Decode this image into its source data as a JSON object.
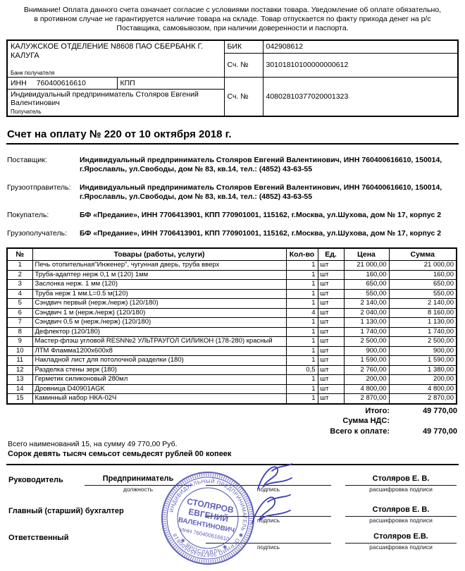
{
  "attention": "Внимание! Оплата данного счета означает согласие с условиями поставки товара. Уведомление об оплате обязательно, в противном случае не гарантируется наличие товара на складе. Товар отпускается по факту прихода денег на р/с Поставщика, самовывозом, при наличии доверенности и паспорта.",
  "bank": {
    "bank_name": "КАЛУЖСКОЕ ОТДЕЛЕНИЕ N8608 ПАО СБЕРБАНК Г. КАЛУГА",
    "bank_caption": "Банк получателя",
    "bik_label": "БИК",
    "bik": "042908612",
    "corr_account_label": "Сч. №",
    "corr_account": "30101810100000000612",
    "inn_label": "ИНН",
    "inn": "760400616610",
    "kpp_label": "КПП",
    "account_label": "Сч. №",
    "account": "40802810377020001323",
    "receiver": "Индивидуальный предприниматель Столяров Евгений Валентинович",
    "receiver_caption": "Получатель"
  },
  "title": "Счет на оплату № 220 от 10 октября 2018 г.",
  "parties": [
    {
      "label": "Поставщик:",
      "value": "Индивидуальный предприниматель Столяров Евгений Валентинович, ИНН 760400616610, 150014, г.Ярославль, ул.Свободы, дом № 83, кв.14, тел.: (4852) 43-63-55"
    },
    {
      "label": "Грузоотправитель:",
      "value": "Индивидуальный предприниматель Столяров Евгений Валентинович, ИНН 760400616610, 150014, г.Ярославль, ул.Свободы, дом № 83, кв.14, тел.: (4852) 43-63-55"
    },
    {
      "label": "Покупатель:",
      "value": "БФ «Предание», ИНН 7706413901, КПП 770901001, 115162, г.Москва, ул.Шухова, дом № 17, корпус 2"
    },
    {
      "label": "Грузополучатель:",
      "value": "БФ «Предание», ИНН 7706413901, КПП 770901001, 115162, г.Москва, ул.Шухова, дом № 17, корпус 2"
    }
  ],
  "items": {
    "headers": [
      "№",
      "Товары (работы, услуги)",
      "Кол-во",
      "Ед.",
      "Цена",
      "Сумма"
    ],
    "rows": [
      [
        "1",
        "Печь отопительная\"Инженер\", чугунная дверь, труба вверх",
        "1",
        "шт",
        "21 000,00",
        "21 000,00"
      ],
      [
        "2",
        "Труба-адаптер нерж 0,1 м (120) 1мм",
        "1",
        "шт",
        "160,00",
        "160,00"
      ],
      [
        "3",
        "Заслонка нерж. 1 мм (120)",
        "1",
        "шт",
        "650,00",
        "650,00"
      ],
      [
        "4",
        "Труба нерж 1 мм.L=0.5 м(120)",
        "1",
        "шт",
        "550,00",
        "550,00"
      ],
      [
        "5",
        "Сэндвич первый (нерж./нерж) (120/180)",
        "1",
        "шт",
        "2 140,00",
        "2 140,00"
      ],
      [
        "6",
        "Сэндвич 1 м (нерж./нерж) (120/180)",
        "4",
        "шт",
        "2 040,00",
        "8 160,00"
      ],
      [
        "7",
        "Сэндвич 0,5 м (нерж./нерж) (120/180)",
        "1",
        "шт",
        "1 130,00",
        "1 130,00"
      ],
      [
        "8",
        "Дефлектор (120/180)",
        "1",
        "шт",
        "1 740,00",
        "1 740,00"
      ],
      [
        "9",
        "Мастер-флэш угловой RESN№2 УЛЬТРАУГОЛ СИЛИКОН (178-280) красный",
        "1",
        "шт",
        "2 500,00",
        "2 500,00"
      ],
      [
        "10",
        "ЛТМ Фламма1200х600х8",
        "1",
        "шт",
        "900,00",
        "900,00"
      ],
      [
        "11",
        "Накладной лист для потолочной разделки (180)",
        "1",
        "шт",
        "1 590,00",
        "1 590,00"
      ],
      [
        "12",
        "Разделка стены зерк (180)",
        "0,5",
        "шт",
        "2 760,00",
        "1 380,00"
      ],
      [
        "13",
        "Герметик силиконовый 280мл",
        "1",
        "шт",
        "200,00",
        "200,00"
      ],
      [
        "14",
        "Дровница D40901AGK",
        "1",
        "шт",
        "4 800,00",
        "4 800,00"
      ],
      [
        "15",
        "Каминный набор НКА-02Ч",
        "1",
        "шт",
        "2 870,00",
        "2 870,00"
      ]
    ]
  },
  "totals": [
    {
      "label": "Итого:",
      "value": "49 770,00"
    },
    {
      "label": "Сумма НДС:",
      "value": ""
    },
    {
      "label": "Всего к оплате:",
      "value": "49 770,00"
    }
  ],
  "summary": {
    "count_line": "Всего наименований 15, на сумму 49 770,00 Руб.",
    "amount_words": "Сорок девять тысяч семьсот семьдесят рублей 00 копеек"
  },
  "signatures": [
    {
      "role": "Руководитель",
      "position": "Предприниматель",
      "position_caption": "должность",
      "sign_caption": "подпись",
      "name": "Столяров Е. В.",
      "name_caption": "расшифровка подписи"
    },
    {
      "role": "Главный (старший) бухгалтер",
      "position": null,
      "position_caption": null,
      "sign_caption": "подпись",
      "name": "Столяров Е. В.",
      "name_caption": "расшифровка подписи"
    },
    {
      "role": "Ответственный",
      "position": null,
      "position_caption": null,
      "sign_caption": "подпись",
      "name": "Столяров Е.В.",
      "name_caption": "расшифровка подписи"
    }
  ],
  "stamp": {
    "ring_text": "ИНДИВИДУАЛЬНЫЙ ПРЕДПРИНИМАТЕЛЬ ✱ ОГРНИП 304760450500818",
    "bottom_text": "✱ ЯРОСЛАВЛЬ ✱",
    "center_line1": "СТОЛЯРОВ",
    "center_line2": "ЕВГЕНИЙ",
    "center_line3": "ВАЛЕНТИНОВИЧ",
    "inn_line": "ИНН 760400616610"
  },
  "colors": {
    "stamp_blue": "#4a4aae",
    "signature_ink": "#3c3cb2",
    "text": "#000000",
    "background": "#ffffff"
  }
}
